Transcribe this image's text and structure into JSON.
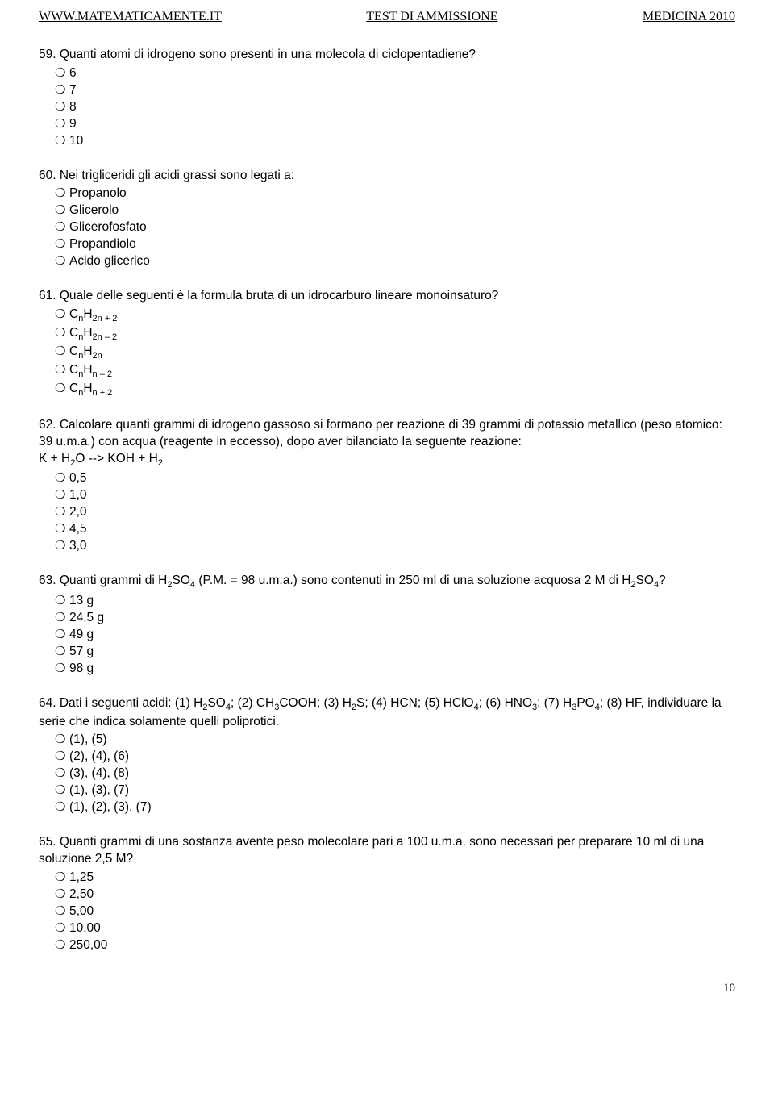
{
  "header": {
    "left": "WWW.MATEMATICAMENTE.IT",
    "center": "TEST DI AMMISSIONE",
    "right": "MEDICINA 2010"
  },
  "questions": [
    {
      "num": "59.",
      "text": "Quanti atomi di idrogeno sono presenti in una molecola di ciclopentadiene?",
      "options": [
        "6",
        "7",
        "8",
        "9",
        "10"
      ]
    },
    {
      "num": "60.",
      "text": "Nei trigliceridi gli acidi grassi sono legati a:",
      "options": [
        "Propanolo",
        "Glicerolo",
        "Glicerofosfato",
        "Propandiolo",
        "Acido glicerico"
      ]
    },
    {
      "num": "61.",
      "text": "Quale delle seguenti è la formula bruta di un idrocarburo lineare monoinsaturo?",
      "options_html": [
        "C<sub>n</sub>H<sub>2n + 2</sub>",
        "C<sub>n</sub>H<sub>2n – 2</sub>",
        "C<sub>n</sub>H<sub>2n</sub>",
        "C<sub>n</sub>H<sub>n – 2</sub>",
        "C<sub>n</sub>H<sub>n + 2</sub>"
      ]
    },
    {
      "num": "62.",
      "text_html": "Calcolare quanti grammi di idrogeno gassoso si formano per reazione di 39 grammi di potassio metallico (peso atomico: 39 u.m.a.) con acqua (reagente in eccesso), dopo aver bilanciato la seguente reazione:<br>K + H<sub>2</sub>O --> KOH + H<sub>2</sub>",
      "options": [
        "0,5",
        "1,0",
        "2,0",
        "4,5",
        "3,0"
      ]
    },
    {
      "num": "63.",
      "text_html": "Quanti grammi di H<sub>2</sub>SO<sub>4</sub> (P.M. = 98 u.m.a.) sono contenuti in 250 ml di una soluzione acquosa 2 M di H<sub>2</sub>SO<sub>4</sub>?",
      "options": [
        "13 g",
        "24,5 g",
        "49 g",
        "57 g",
        "98 g"
      ]
    },
    {
      "num": "64.",
      "text_html": "Dati i seguenti acidi: (1) H<sub>2</sub>SO<sub>4</sub>; (2) CH<sub>3</sub>COOH; (3) H<sub>2</sub>S; (4) HCN; (5) HClO<sub>4</sub>; (6) HNO<sub>3</sub>; (7) H<sub>3</sub>PO<sub>4</sub>; (8) HF, individuare la serie che indica solamente quelli poliprotici.",
      "options": [
        "(1), (5)",
        "(2), (4), (6)",
        "(3), (4), (8)",
        "(1), (3), (7)",
        "(1), (2), (3), (7)"
      ]
    },
    {
      "num": "65.",
      "text": "Quanti grammi di una sostanza avente peso molecolare pari a 100 u.m.a. sono necessari per preparare 10 ml di una soluzione 2,5 M?",
      "options": [
        "1,25",
        "2,50",
        "5,00",
        "10,00",
        "250,00"
      ]
    }
  ],
  "bullet": "❍",
  "footer": {
    "page": "10"
  }
}
